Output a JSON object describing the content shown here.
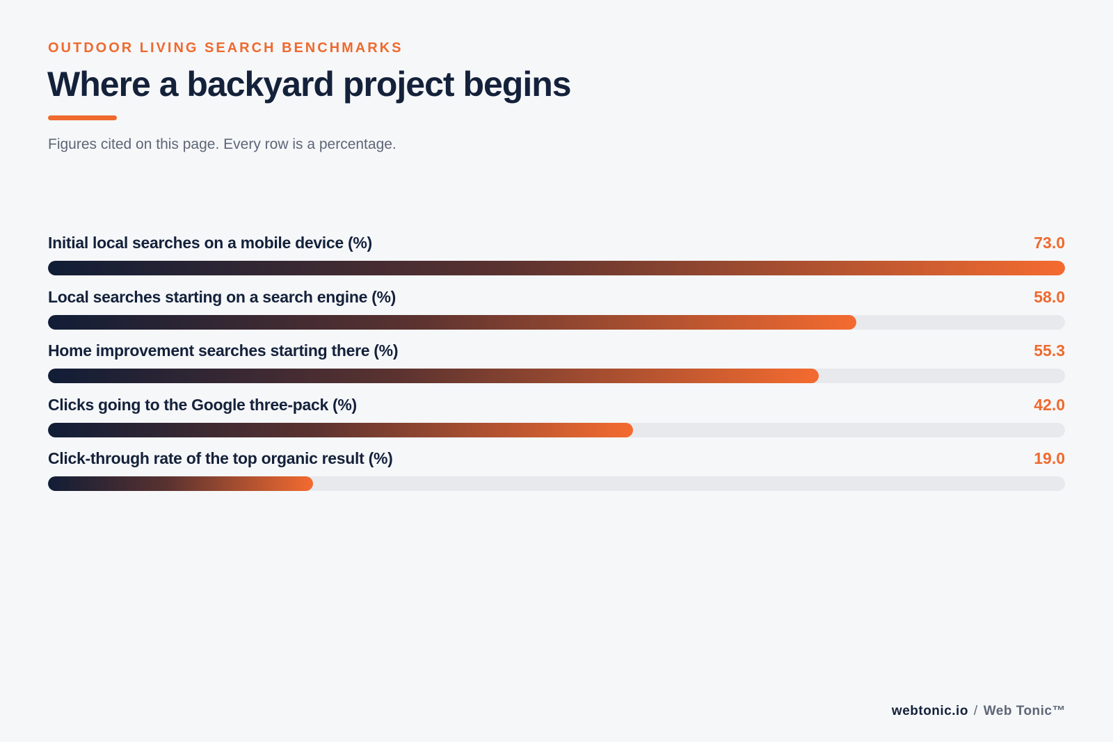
{
  "header": {
    "eyebrow": "OUTDOOR LIVING SEARCH BENCHMARKS",
    "title": "Where a backyard project begins",
    "subtitle": "Figures cited on this page. Every row is a percentage."
  },
  "colors": {
    "accent": "#ee6a2e",
    "navy": "#14213a",
    "track": "#e7e9ed",
    "background": "#f6f7f9"
  },
  "chart_data": {
    "type": "bar",
    "orientation": "horizontal",
    "categories": [
      "Initial local searches on a mobile device (%)",
      "Local searches starting on a search engine (%)",
      "Home improvement searches starting there (%)",
      "Clicks going to the Google three-pack (%)",
      "Click-through rate of the top organic result (%)"
    ],
    "values": [
      73.0,
      58.0,
      55.3,
      42.0,
      19.0
    ],
    "value_labels": [
      "73.0",
      "58.0",
      "55.3",
      "42.0",
      "19.0"
    ],
    "scale_max": 73.0
  },
  "footer": {
    "domain": "webtonic.io",
    "separator": "/",
    "brand": "Web Tonic™"
  }
}
